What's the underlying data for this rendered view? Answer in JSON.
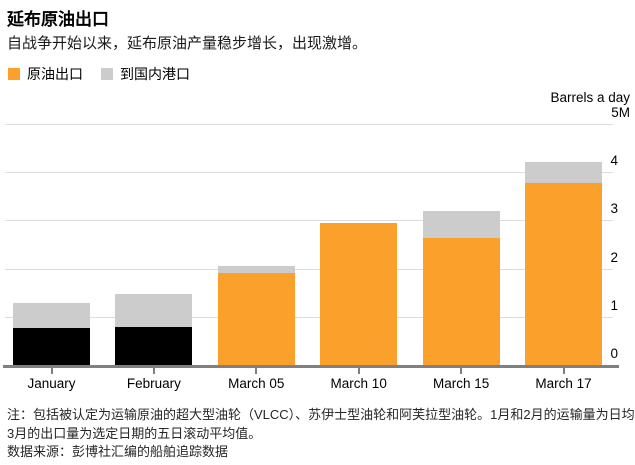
{
  "header": {
    "title": "延布原油出口",
    "subtitle": "自战争开始以来，延布原油产量稳步增长，出现激增。"
  },
  "legend": [
    {
      "label": "原油出口",
      "color": "#FCA02C"
    },
    {
      "label": "到国内港口",
      "color": "#CCCCCC"
    }
  ],
  "axis": {
    "unit_label": "Barrels a day",
    "top_tick_label": "5M"
  },
  "chart_data": {
    "type": "bar",
    "stacked": true,
    "title": "延布原油出口",
    "ylabel": "Barrels a day",
    "ylim": [
      0,
      5
    ],
    "yticks": [
      0,
      1,
      2,
      3,
      4,
      5
    ],
    "ytick_top_label": "5M",
    "grid": true,
    "legend_position": "top-left",
    "categories": [
      "January",
      "February",
      "March 05",
      "March 10",
      "March 15",
      "March 17"
    ],
    "series": [
      {
        "name": "原油出口",
        "values": [
          0.76,
          0.79,
          1.9,
          2.95,
          2.64,
          3.78
        ],
        "colors": [
          "#000000",
          "#000000",
          "#FCA02C",
          "#FCA02C",
          "#FCA02C",
          "#FCA02C"
        ]
      },
      {
        "name": "到国内港口",
        "values": [
          0.52,
          0.68,
          0.15,
          0,
          0.56,
          0.43
        ],
        "colors": [
          "#CCCCCC",
          "#CCCCCC",
          "#CCCCCC",
          "#CCCCCC",
          "#CCCCCC",
          "#CCCCCC"
        ]
      }
    ]
  },
  "footer": {
    "notes": [
      "注：包括被认定为运输原油的超大型油轮（VLCC）、苏伊士型油轮和阿芙拉型油轮。1月和2月的运输量为日均值，而",
      "3月的出口量为选定日期的五日滚动平均值。",
      "数据来源：彭博社汇编的船舶追踪数据"
    ]
  }
}
